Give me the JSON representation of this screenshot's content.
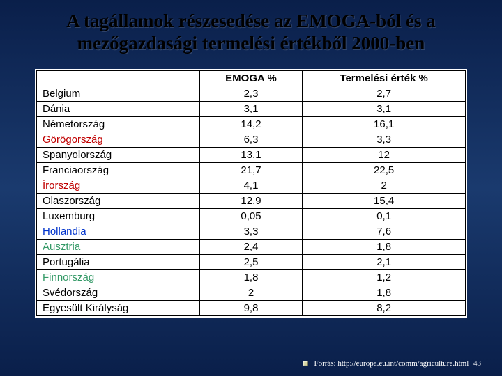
{
  "title": "A tagállamok részesedése az EMOGA-ból és a mezőgazdasági termelési értékből 2000-ben",
  "columns": [
    "",
    "EMOGA %",
    "Termelési érték %"
  ],
  "row_colors": {
    "default": "#000000",
    "highlight_red": "#c00000",
    "highlight_blue": "#0033cc",
    "highlight_green": "#339966"
  },
  "rows": [
    {
      "country": "Belgium",
      "emoga": "2,3",
      "prod": "2,7",
      "color": "default"
    },
    {
      "country": "Dánia",
      "emoga": "3,1",
      "prod": "3,1",
      "color": "default"
    },
    {
      "country": "Németország",
      "emoga": "14,2",
      "prod": "16,1",
      "color": "default"
    },
    {
      "country": "Görögország",
      "emoga": "6,3",
      "prod": "3,3",
      "color": "highlight_red"
    },
    {
      "country": "Spanyolország",
      "emoga": "13,1",
      "prod": "12",
      "color": "default"
    },
    {
      "country": "Franciaország",
      "emoga": "21,7",
      "prod": "22,5",
      "color": "default"
    },
    {
      "country": "Írország",
      "emoga": "4,1",
      "prod": "2",
      "color": "highlight_red"
    },
    {
      "country": "Olaszország",
      "emoga": "12,9",
      "prod": "15,4",
      "color": "default"
    },
    {
      "country": "Luxemburg",
      "emoga": "0,05",
      "prod": "0,1",
      "color": "default"
    },
    {
      "country": "Hollandia",
      "emoga": "3,3",
      "prod": "7,6",
      "color": "highlight_blue"
    },
    {
      "country": "Ausztria",
      "emoga": "2,4",
      "prod": "1,8",
      "color": "highlight_green"
    },
    {
      "country": "Portugália",
      "emoga": "2,5",
      "prod": "2,1",
      "color": "default"
    },
    {
      "country": "Finnország",
      "emoga": "1,8",
      "prod": "1,2",
      "color": "highlight_green"
    },
    {
      "country": "Svédország",
      "emoga": "2",
      "prod": "1,8",
      "color": "default"
    },
    {
      "country": "Egyesült Királyság",
      "emoga": "9,8",
      "prod": "8,2",
      "color": "default"
    }
  ],
  "footer": {
    "source_label": "Forrás:",
    "source_url": "http://europa.eu.int/comm/agriculture.html",
    "page_number": "43"
  },
  "style": {
    "title_fontsize": 27,
    "cell_fontsize": 15,
    "footer_fontsize": 11,
    "table_border_color": "#000000",
    "background_gradient": [
      "#0a1f4a",
      "#1a3a6e",
      "#0a1f4a"
    ]
  }
}
